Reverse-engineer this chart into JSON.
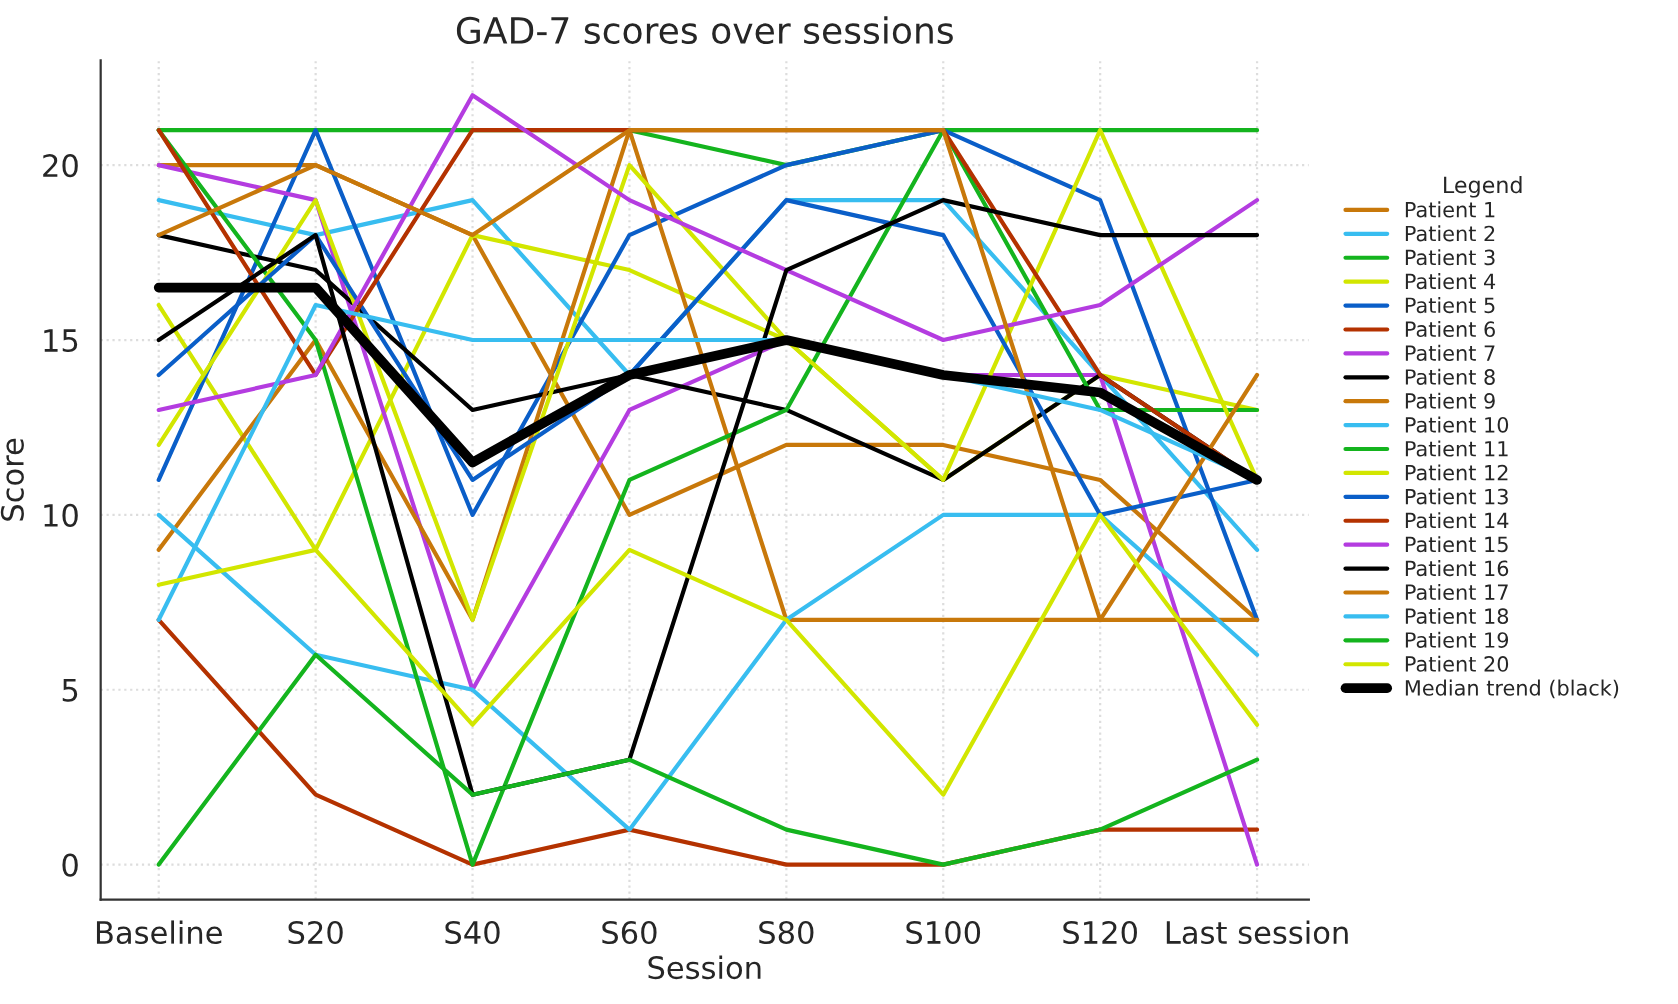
{
  "chart_data": {
    "type": "line",
    "title": "GAD-7 scores over sessions",
    "xlabel": "Session",
    "ylabel": "Score",
    "legend_title": "Legend",
    "categories": [
      "Baseline",
      "S20",
      "S40",
      "S60",
      "S80",
      "S100",
      "S120",
      "Last session"
    ],
    "ylim": [
      -1,
      23
    ],
    "yticks": [
      0,
      5,
      10,
      15,
      20
    ],
    "grid": true,
    "legend": "right",
    "line_style": "solid",
    "marker": "none",
    "series": [
      {
        "name": "Patient 1",
        "color": "#c8780a",
        "values": [
          20,
          20,
          18,
          10,
          12,
          12,
          11,
          7
        ]
      },
      {
        "name": "Patient 2",
        "color": "#38bdf0",
        "values": [
          19,
          18,
          19,
          14,
          19,
          19,
          14,
          9
        ]
      },
      {
        "name": "Patient 3",
        "color": "#14b41e",
        "values": [
          21,
          21,
          21,
          21,
          20,
          21,
          21,
          21
        ]
      },
      {
        "name": "Patient 4",
        "color": "#d2e600",
        "values": [
          16,
          9,
          18,
          17,
          15,
          11,
          14,
          13
        ]
      },
      {
        "name": "Patient 5",
        "color": "#0a5ec8",
        "values": [
          11,
          21,
          10,
          18,
          20,
          21,
          19,
          7
        ]
      },
      {
        "name": "Patient 6",
        "color": "#b43200",
        "values": [
          7,
          2,
          0,
          1,
          0,
          0,
          1,
          1
        ]
      },
      {
        "name": "Patient 7",
        "color": "#b43ce0",
        "values": [
          20,
          19,
          5,
          13,
          15,
          14,
          14,
          0
        ]
      },
      {
        "name": "Patient 8",
        "color": "#000000",
        "values": [
          18,
          17,
          13,
          14,
          13,
          11,
          14,
          11
        ]
      },
      {
        "name": "Patient 9",
        "color": "#c8780a",
        "values": [
          9,
          15,
          7,
          21,
          7,
          7,
          7,
          7
        ]
      },
      {
        "name": "Patient 10",
        "color": "#38bdf0",
        "values": [
          10,
          6,
          5,
          1,
          7,
          10,
          10,
          6
        ]
      },
      {
        "name": "Patient 11",
        "color": "#14b41e",
        "values": [
          21,
          15,
          0,
          11,
          13,
          21,
          13,
          13
        ]
      },
      {
        "name": "Patient 12",
        "color": "#d2e600",
        "values": [
          12,
          19,
          7,
          20,
          15,
          11,
          21,
          11
        ]
      },
      {
        "name": "Patient 13",
        "color": "#0a5ec8",
        "values": [
          14,
          18,
          11,
          14,
          19,
          18,
          10,
          11
        ]
      },
      {
        "name": "Patient 14",
        "color": "#b43200",
        "values": [
          21,
          14,
          21,
          21,
          21,
          21,
          14,
          11
        ]
      },
      {
        "name": "Patient 15",
        "color": "#b43ce0",
        "values": [
          13,
          14,
          22,
          19,
          17,
          15,
          16,
          19
        ]
      },
      {
        "name": "Patient 16",
        "color": "#000000",
        "values": [
          15,
          18,
          2,
          3,
          17,
          19,
          18,
          18
        ]
      },
      {
        "name": "Patient 17",
        "color": "#c8780a",
        "values": [
          18,
          20,
          18,
          21,
          21,
          21,
          7,
          14
        ]
      },
      {
        "name": "Patient 18",
        "color": "#38bdf0",
        "values": [
          7,
          16,
          15,
          15,
          15,
          14,
          13,
          11
        ]
      },
      {
        "name": "Patient 19",
        "color": "#14b41e",
        "values": [
          0,
          6,
          2,
          3,
          1,
          0,
          1,
          3
        ]
      },
      {
        "name": "Patient 20",
        "color": "#d2e600",
        "values": [
          8,
          9,
          4,
          9,
          7,
          2,
          10,
          4
        ]
      },
      {
        "name": "Median trend (black)",
        "color": "#000000",
        "values": [
          16.5,
          16.5,
          11.5,
          14,
          15,
          14,
          13.5,
          11
        ]
      }
    ]
  }
}
